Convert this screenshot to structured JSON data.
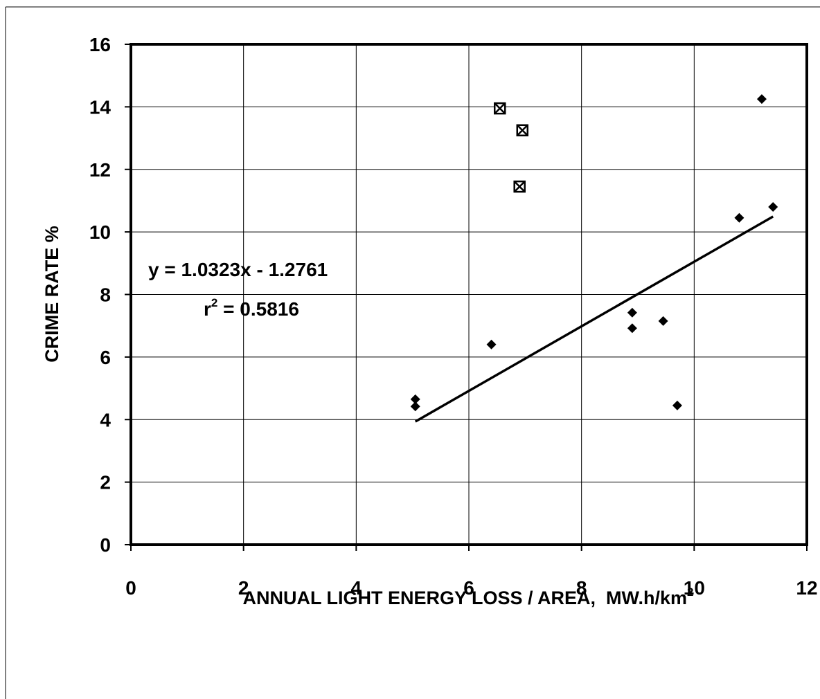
{
  "chart_data": {
    "type": "scatter",
    "title": "",
    "xlabel": "ANNUAL LIGHT ENERGY LOSS / AREA,  MW.h/km",
    "xlabel_sup": "2",
    "ylabel": "CRIME RATE %",
    "xlim": [
      0,
      12
    ],
    "ylim": [
      0,
      16
    ],
    "x_ticks": [
      "0",
      "2",
      "4",
      "6",
      "8",
      "10",
      "12"
    ],
    "y_ticks": [
      "0",
      "2",
      "4",
      "6",
      "8",
      "10",
      "12",
      "14",
      "16"
    ],
    "grid": true,
    "legend": "none",
    "series": [
      {
        "marker": "diamond",
        "color": "#000000",
        "points": [
          {
            "x": 5.05,
            "y": 4.65
          },
          {
            "x": 5.05,
            "y": 4.42
          },
          {
            "x": 6.4,
            "y": 6.4
          },
          {
            "x": 8.9,
            "y": 7.42
          },
          {
            "x": 8.9,
            "y": 6.92
          },
          {
            "x": 9.45,
            "y": 7.15
          },
          {
            "x": 9.7,
            "y": 4.45
          },
          {
            "x": 10.8,
            "y": 10.45
          },
          {
            "x": 11.2,
            "y": 14.25
          },
          {
            "x": 11.4,
            "y": 10.8
          }
        ]
      },
      {
        "marker": "boxed-x",
        "color": "#000000",
        "points": [
          {
            "x": 6.55,
            "y": 13.95
          },
          {
            "x": 6.95,
            "y": 13.25
          },
          {
            "x": 6.9,
            "y": 11.45
          }
        ]
      }
    ],
    "trendline": {
      "slope": 1.0323,
      "intercept": -1.2761,
      "x_range": [
        5.05,
        11.4
      ],
      "equation": "y = 1.0323x - 1.2761",
      "r2_prefix": "r",
      "r2_sup": "2",
      "r2_value": " = 0.5816"
    }
  }
}
